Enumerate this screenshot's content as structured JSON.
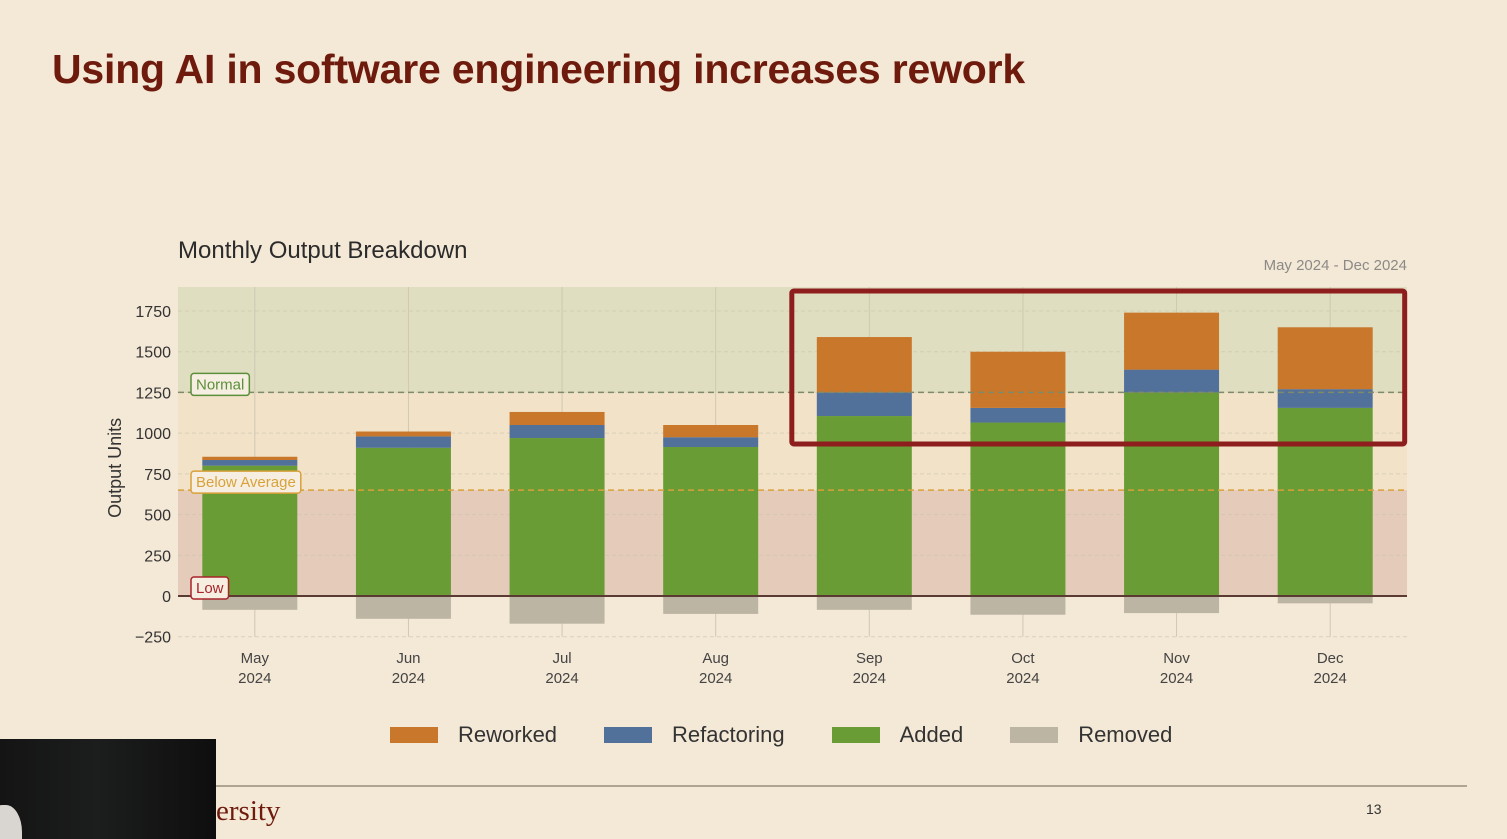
{
  "slide": {
    "title": "Using AI in software engineering increases rework",
    "footer_logo_text": "ersity",
    "page_number": "13"
  },
  "chart_data": {
    "type": "bar",
    "stacked": true,
    "title": "Monthly Output Breakdown",
    "subtitle": "May 2024 - Dec 2024",
    "xlabel": "",
    "ylabel": "Output Units",
    "ylim": [
      -250,
      1900
    ],
    "yticks": [
      -250,
      0,
      250,
      500,
      750,
      1000,
      1250,
      1500,
      1750
    ],
    "grid": true,
    "legend_position": "bottom",
    "categories": [
      [
        "May",
        "2024"
      ],
      [
        "Jun",
        "2024"
      ],
      [
        "Jul",
        "2024"
      ],
      [
        "Aug",
        "2024"
      ],
      [
        "Sep",
        "2024"
      ],
      [
        "Oct",
        "2024"
      ],
      [
        "Nov",
        "2024"
      ],
      [
        "Dec",
        "2024"
      ]
    ],
    "series": [
      {
        "name": "Added",
        "color": "#6a9c35",
        "values": [
          800,
          910,
          970,
          915,
          1105,
          1065,
          1250,
          1155
        ]
      },
      {
        "name": "Refactoring",
        "color": "#51709a",
        "values": [
          35,
          70,
          80,
          60,
          145,
          90,
          140,
          115
        ]
      },
      {
        "name": "Reworked",
        "color": "#c8772b",
        "values": [
          20,
          30,
          80,
          75,
          340,
          345,
          350,
          380
        ]
      },
      {
        "name": "Removed",
        "color": "#bdb5a3",
        "values": [
          -85,
          -140,
          -170,
          -110,
          -85,
          -115,
          -105,
          -45
        ]
      }
    ],
    "legend_order": [
      "Reworked",
      "Refactoring",
      "Added",
      "Removed"
    ],
    "bands": [
      {
        "name": "Low",
        "from": 0,
        "to": 650,
        "color": "#e2c5b5"
      },
      {
        "name": "Below Average",
        "from": 650,
        "to": 1250,
        "color": "#f1e0c5"
      },
      {
        "name": "Normal",
        "from": 1250,
        "to": 1900,
        "color": "#dcdcbc"
      }
    ],
    "thresholds": [
      {
        "label": "Normal",
        "value": 1250,
        "color": "#5b8f3a",
        "line_color": "#7e8a6a"
      },
      {
        "label": "Below Average",
        "value": 650,
        "color": "#d9a13a",
        "line_color": "#d9a13a"
      },
      {
        "label": "Low",
        "value": 0,
        "color": "#a8242a",
        "line_color": "#5a3a33"
      }
    ],
    "annotation": {
      "type": "highlight-box",
      "covers_categories": [
        "Sep 2024",
        "Oct 2024",
        "Nov 2024",
        "Dec 2024"
      ],
      "color": "#8e1e1e"
    }
  }
}
